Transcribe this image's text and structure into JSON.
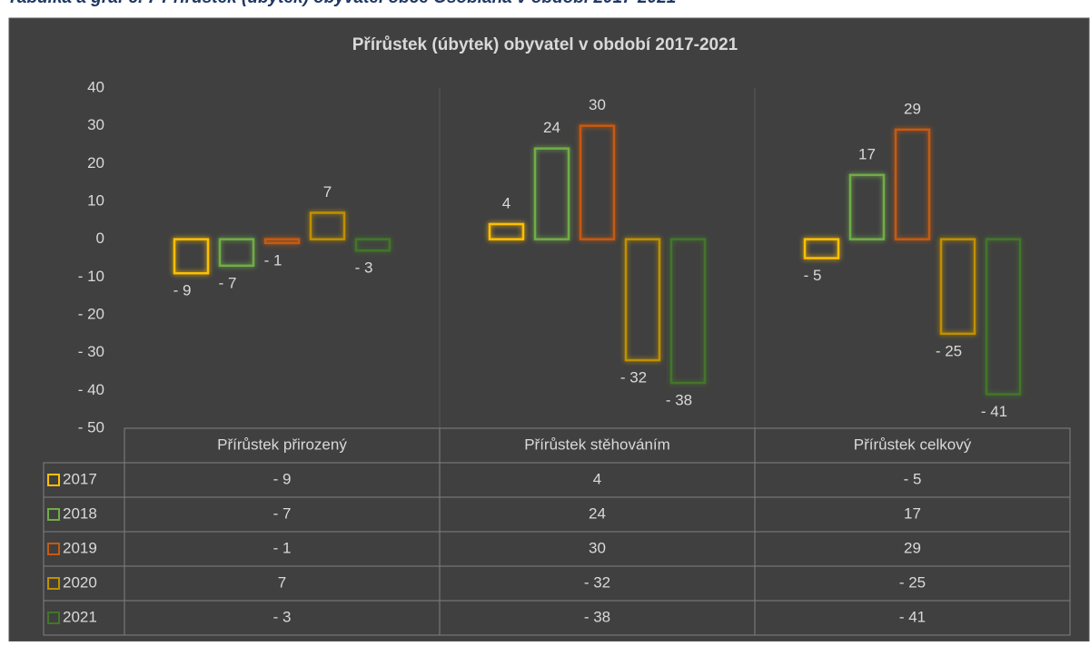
{
  "caption": "Tabulka a graf č. 7 Přírůstek (úbytek) obyvatel obce Osoblaha v období 2017-2021",
  "chart_data": {
    "type": "bar",
    "title": "Přírůstek (úbytek) obyvatel v období 2017-2021",
    "categories": [
      "Přírůstek přirozený",
      "Přírůstek stěhováním",
      "Přírůstek celkový"
    ],
    "series": [
      {
        "name": "2017",
        "color": "#ffc000",
        "values": [
          -9,
          4,
          -5
        ],
        "value_labels": [
          "- 9",
          "4",
          "- 5"
        ]
      },
      {
        "name": "2018",
        "color": "#70ad47",
        "values": [
          -7,
          24,
          17
        ],
        "value_labels": [
          "- 7",
          "24",
          "17"
        ]
      },
      {
        "name": "2019",
        "color": "#c55a11",
        "values": [
          -1,
          30,
          29
        ],
        "value_labels": [
          "- 1",
          "30",
          "29"
        ]
      },
      {
        "name": "2020",
        "color": "#bf9000",
        "values": [
          7,
          -32,
          -25
        ],
        "value_labels": [
          "7",
          "- 32",
          "- 25"
        ]
      },
      {
        "name": "2021",
        "color": "#43752a",
        "values": [
          -3,
          -38,
          -41
        ],
        "value_labels": [
          "- 3",
          "- 38",
          "- 41"
        ]
      }
    ],
    "ylim": [
      -50,
      40
    ],
    "yticks": [
      {
        "value": -50,
        "label": "- 50"
      },
      {
        "value": -40,
        "label": "- 40"
      },
      {
        "value": -30,
        "label": "- 30"
      },
      {
        "value": -20,
        "label": "- 20"
      },
      {
        "value": -10,
        "label": "- 10"
      },
      0,
      10,
      20,
      30,
      40
    ],
    "grid": false
  }
}
